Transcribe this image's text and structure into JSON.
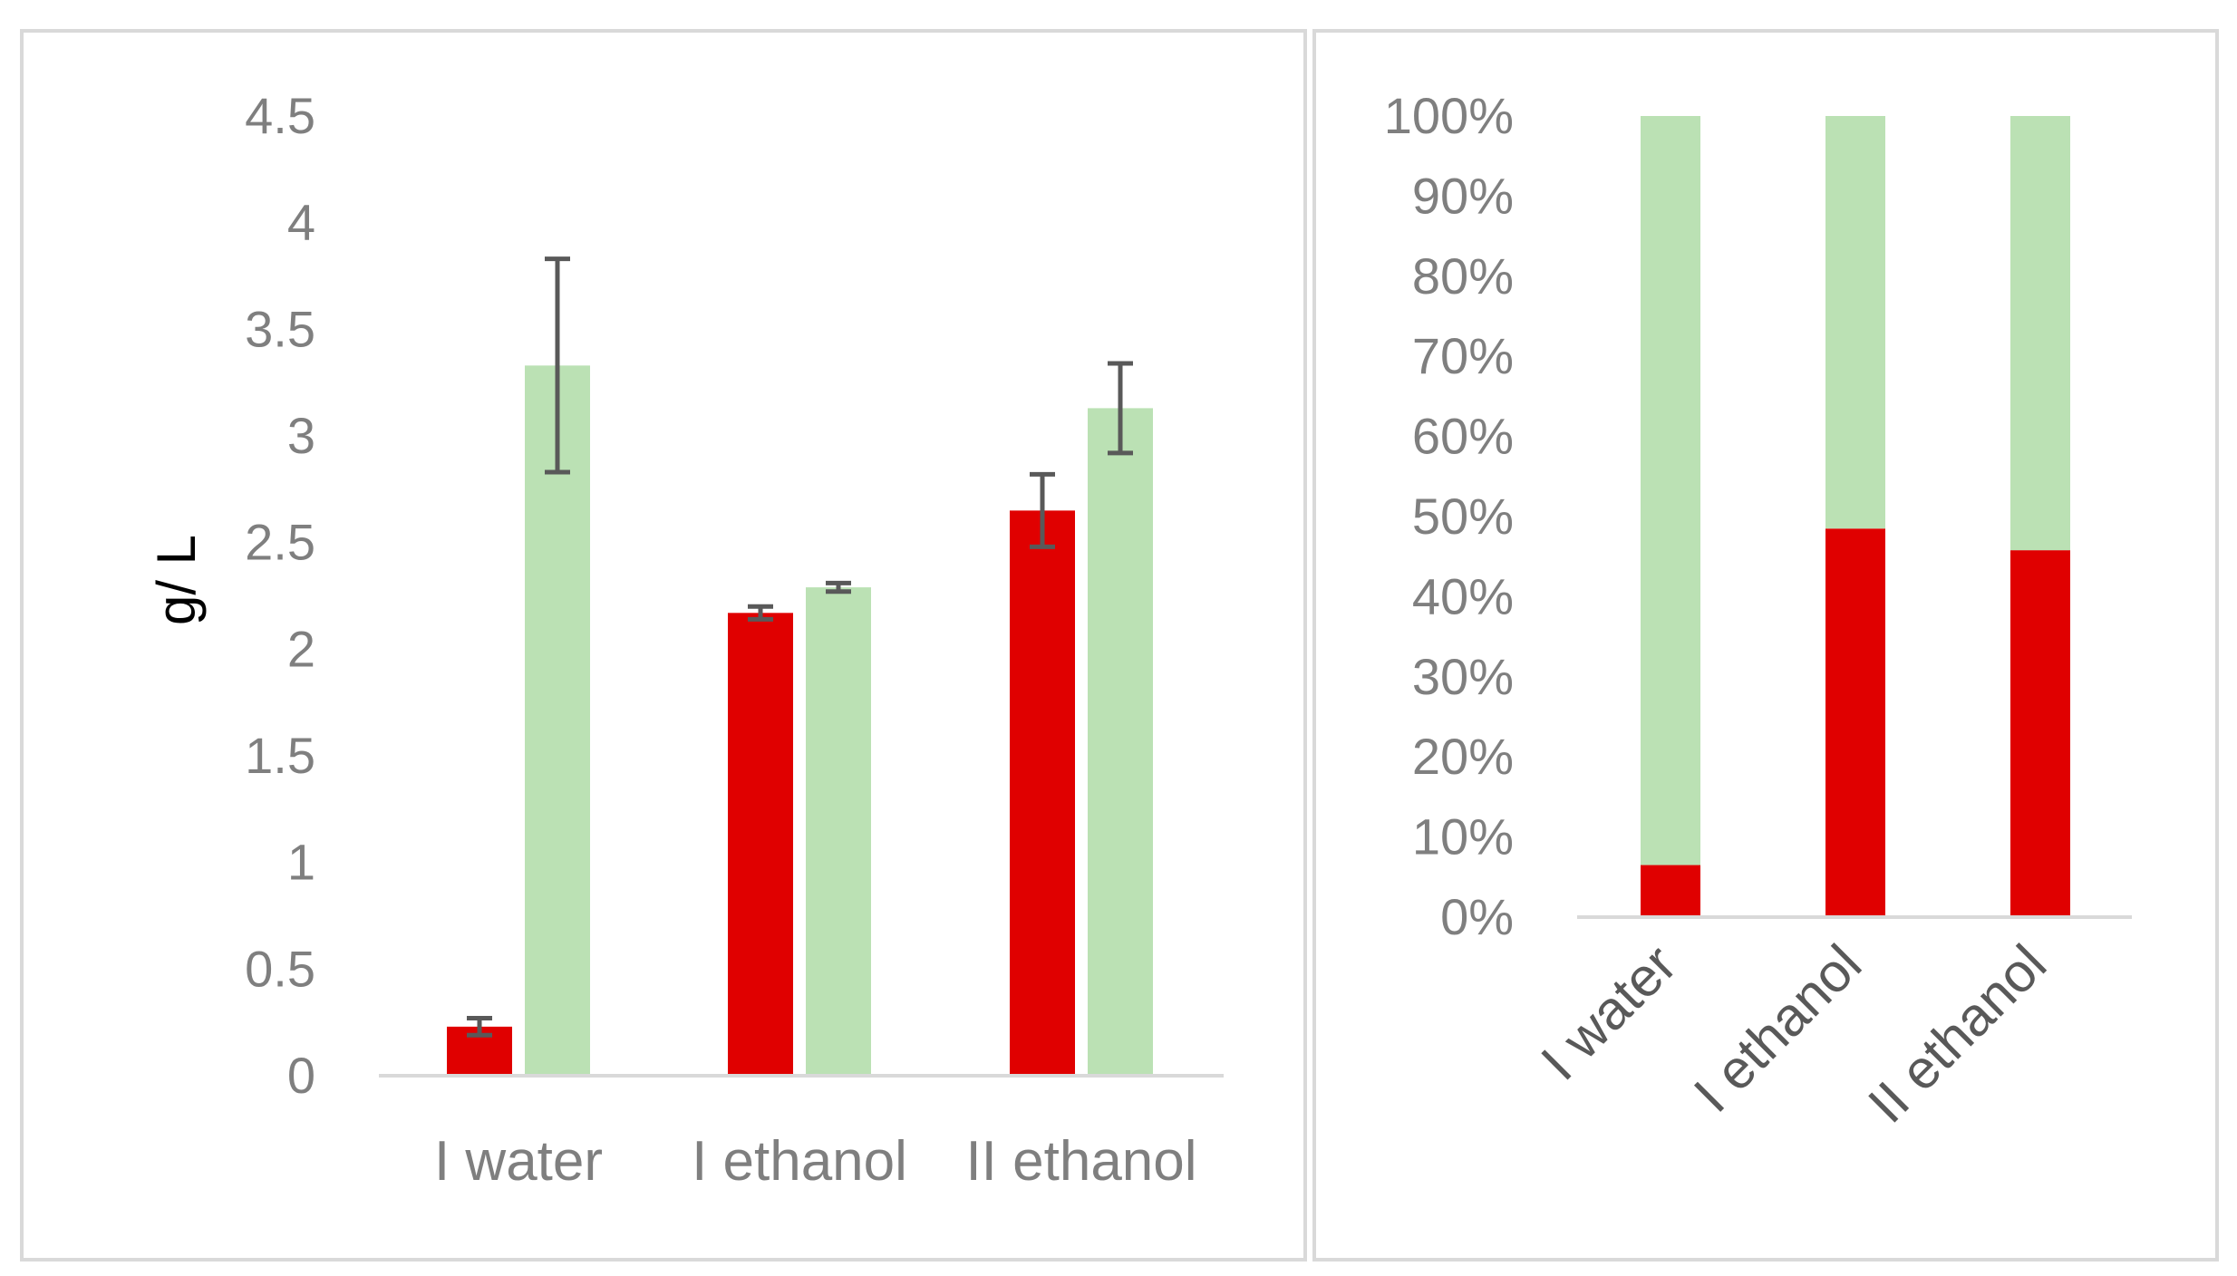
{
  "chart_data": [
    {
      "type": "bar",
      "title": "",
      "xlabel": "",
      "ylabel": "g/ L",
      "ylim": [
        0,
        4.5
      ],
      "yticks": [
        "0",
        "0.5",
        "1",
        "1.5",
        "2",
        "2.5",
        "3",
        "3.5",
        "4",
        "4.5"
      ],
      "categories": [
        "I water",
        "I ethanol",
        "II ethanol"
      ],
      "series": [
        {
          "name": "red",
          "color": "#e00000",
          "values": [
            0.23,
            2.17,
            2.65
          ],
          "errors": [
            0.04,
            0.03,
            0.17
          ]
        },
        {
          "name": "green",
          "color": "#bbe1b4",
          "values": [
            3.33,
            2.29,
            3.13
          ],
          "errors": [
            0.5,
            0.02,
            0.21
          ]
        }
      ],
      "legend": "none",
      "grid": false
    },
    {
      "type": "bar",
      "stacked": "percent",
      "title": "",
      "xlabel": "",
      "ylabel": "",
      "ylim": [
        0,
        100
      ],
      "yticks": [
        "0%",
        "10%",
        "20%",
        "30%",
        "40%",
        "50%",
        "60%",
        "70%",
        "80%",
        "90%",
        "100%"
      ],
      "categories": [
        "I water",
        "I ethanol",
        "II ethanol"
      ],
      "series": [
        {
          "name": "red",
          "color": "#e00000",
          "values": [
            6.5,
            48.5,
            45.8
          ]
        },
        {
          "name": "green",
          "color": "#bbe1b4",
          "values": [
            93.5,
            51.5,
            54.2
          ]
        }
      ],
      "legend": "none",
      "grid": false
    }
  ]
}
